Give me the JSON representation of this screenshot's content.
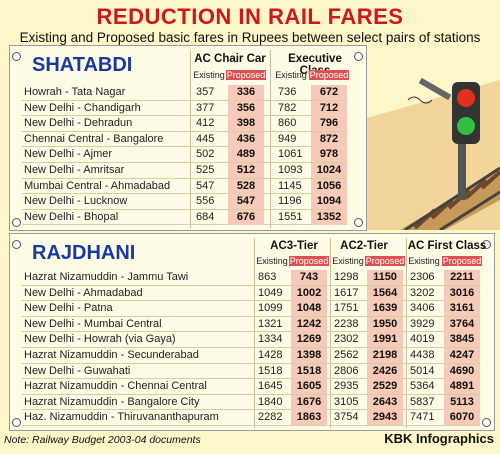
{
  "header": {
    "title": "REDUCTION IN RAIL FARES",
    "subtitle": "Existing and Proposed basic fares in Rupees between select pairs of stations"
  },
  "shatabdi": {
    "name": "SHATABDI",
    "classes": [
      "AC Chair Car",
      "Executive Class"
    ],
    "existing_label": "Existing",
    "proposed_label": "Proposed",
    "rows": [
      {
        "route": "Howrah - Tata Nagar",
        "v": [
          "357",
          "336",
          "736",
          "672"
        ]
      },
      {
        "route": "New Delhi - Chandigarh",
        "v": [
          "377",
          "356",
          "782",
          "712"
        ]
      },
      {
        "route": "New Delhi - Dehradun",
        "v": [
          "412",
          "398",
          "860",
          "796"
        ]
      },
      {
        "route": "Chennai Central - Bangalore",
        "v": [
          "445",
          "436",
          "949",
          "872"
        ]
      },
      {
        "route": "New Delhi - Ajmer",
        "v": [
          "502",
          "489",
          "1061",
          "978"
        ]
      },
      {
        "route": "New Delhi - Amritsar",
        "v": [
          "525",
          "512",
          "1093",
          "1024"
        ]
      },
      {
        "route": "Mumbai Central - Ahmadabad",
        "v": [
          "547",
          "528",
          "1145",
          "1056"
        ]
      },
      {
        "route": "New Delhi - Lucknow",
        "v": [
          "556",
          "547",
          "1196",
          "1094"
        ]
      },
      {
        "route": "New Delhi - Bhopal",
        "v": [
          "684",
          "676",
          "1551",
          "1352"
        ]
      }
    ]
  },
  "rajdhani": {
    "name": "RAJDHANI",
    "classes": [
      "AC3-Tier",
      "AC2-Tier",
      "AC First Class"
    ],
    "existing_label": "Existing",
    "proposed_label": "Proposed",
    "rows": [
      {
        "route": "Hazrat Nizamuddin - Jammu Tawi",
        "v": [
          "863",
          "743",
          "1298",
          "1150",
          "2306",
          "2211"
        ]
      },
      {
        "route": "New Delhi - Ahmadabad",
        "v": [
          "1049",
          "1002",
          "1617",
          "1564",
          "3202",
          "3016"
        ]
      },
      {
        "route": "New Delhi - Patna",
        "v": [
          "1099",
          "1048",
          "1751",
          "1639",
          "3406",
          "3161"
        ]
      },
      {
        "route": "New Delhi - Mumbai Central",
        "v": [
          "1321",
          "1242",
          "2238",
          "1950",
          "3929",
          "3764"
        ]
      },
      {
        "route": "New Delhi - Howrah (via Gaya)",
        "v": [
          "1334",
          "1269",
          "2302",
          "1991",
          "4019",
          "3845"
        ]
      },
      {
        "route": "Hazrat Nizamuddin - Secunderabad",
        "v": [
          "1428",
          "1398",
          "2562",
          "2198",
          "4438",
          "4247"
        ]
      },
      {
        "route": "New Delhi - Guwahati",
        "v": [
          "1518",
          "1518",
          "2806",
          "2426",
          "5014",
          "4690"
        ]
      },
      {
        "route": "Hazrat Nizamuddin - Chennai Central",
        "v": [
          "1645",
          "1605",
          "2935",
          "2529",
          "5364",
          "4891"
        ]
      },
      {
        "route": "Hazrat Nizamuddin - Bangalore City",
        "v": [
          "1840",
          "1676",
          "3105",
          "2643",
          "5837",
          "5113"
        ]
      },
      {
        "route": "Haz. Nizamuddin - Thiruvananthapuram",
        "v": [
          "2282",
          "1863",
          "3754",
          "2943",
          "7471",
          "6070"
        ]
      }
    ]
  },
  "footer": {
    "note": "Note: Railway Budget 2003-04 documents",
    "credit": "KBK Infographics"
  },
  "colors": {
    "title": "#d01818",
    "brand": "#1b3aa0",
    "proposed_header": "#e05050"
  }
}
